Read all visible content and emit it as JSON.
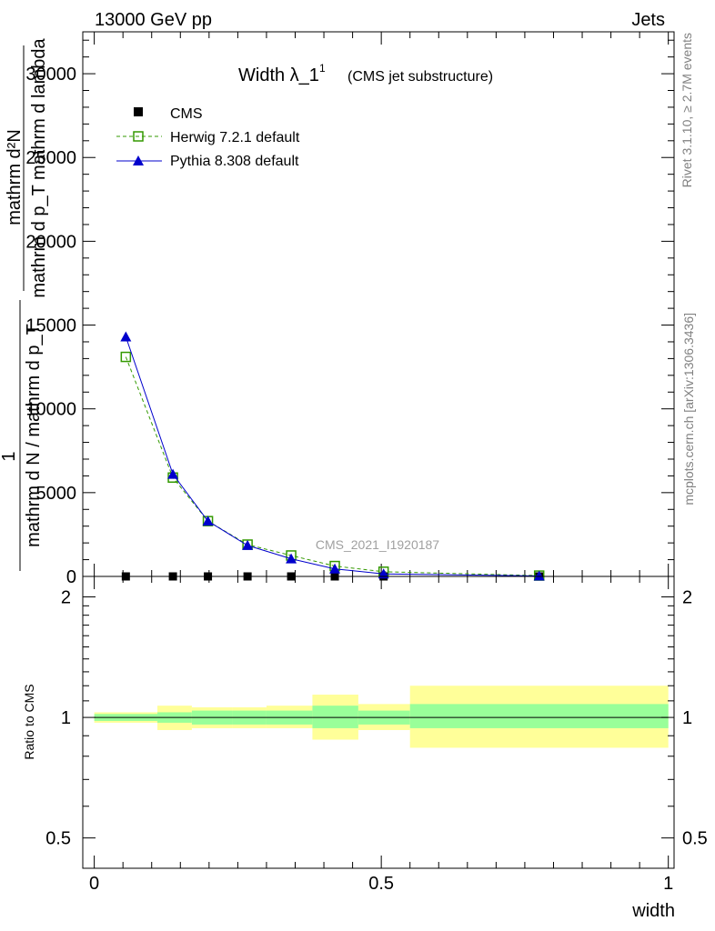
{
  "header": {
    "energy_label": "13000 GeV pp",
    "process_label": "Jets",
    "side_label_top": "Rivet 3.1.10, ≥ 2.7M events",
    "side_label_bottom": "mcplots.cern.ch [arXiv:1306.3436]"
  },
  "chart_data": [
    {
      "type": "line",
      "title": "Width λ_1",
      "title_superscript": "1",
      "subtitle": "(CMS jet substructure)",
      "watermark": "CMS_2021_I1920187",
      "ylabel_numerator": "mathrm d²N",
      "ylabel_denominator": "mathrm d p_T mathrm d lambda",
      "ylabel_prefix_numerator": "1",
      "ylabel_prefix_denominator": "mathrm d N / mathrm d p_T",
      "xlim": [
        -0.02,
        1.01
      ],
      "ylim": [
        0,
        32500
      ],
      "yticks": [
        0,
        5000,
        10000,
        15000,
        20000,
        25000,
        30000
      ],
      "ytick_labels": [
        "0",
        "5000",
        "10000",
        "15000",
        "20000",
        "25000",
        "30000"
      ],
      "legend_position": "top-left",
      "series": [
        {
          "name": "CMS",
          "marker": "square",
          "color": "#000000",
          "x": [
            0.055,
            0.137,
            0.198,
            0.267,
            0.343,
            0.419,
            0.504,
            0.775
          ],
          "y": [
            0,
            0,
            0,
            0,
            0,
            0,
            0,
            0
          ]
        },
        {
          "name": "Herwig 7.2.1 default",
          "marker": "open-square",
          "line": "dashed",
          "color": "#339900",
          "x": [
            0.055,
            0.137,
            0.198,
            0.267,
            0.343,
            0.419,
            0.504,
            0.775
          ],
          "y": [
            13100,
            5900,
            3300,
            1900,
            1250,
            620,
            280,
            50
          ]
        },
        {
          "name": "Pythia 8.308 default",
          "marker": "triangle",
          "line": "solid",
          "color": "#0000cc",
          "x": [
            0.055,
            0.137,
            0.198,
            0.267,
            0.343,
            0.419,
            0.504,
            0.775
          ],
          "y": [
            14300,
            6100,
            3300,
            1850,
            1050,
            450,
            150,
            30
          ]
        }
      ]
    },
    {
      "type": "area",
      "ylabel": "Ratio to CMS",
      "xlabel": "width",
      "xlim": [
        -0.02,
        1.01
      ],
      "ylim": [
        0.42,
        2.25
      ],
      "log_scale_y": true,
      "xticks": [
        0,
        0.5,
        1
      ],
      "xtick_labels": [
        "0",
        "0.5",
        "1"
      ],
      "yticks": [
        0.5,
        1,
        2
      ],
      "ytick_labels": [
        "0.5",
        "1",
        "2"
      ],
      "bins": [
        {
          "x0": 0.0,
          "x1": 0.11,
          "inner": [
            0.98,
            1.02
          ],
          "outer": [
            0.97,
            1.03
          ]
        },
        {
          "x0": 0.11,
          "x1": 0.17,
          "inner": [
            0.97,
            1.03
          ],
          "outer": [
            0.93,
            1.07
          ]
        },
        {
          "x0": 0.17,
          "x1": 0.24,
          "inner": [
            0.96,
            1.04
          ],
          "outer": [
            0.94,
            1.06
          ]
        },
        {
          "x0": 0.24,
          "x1": 0.3,
          "inner": [
            0.96,
            1.04
          ],
          "outer": [
            0.94,
            1.06
          ]
        },
        {
          "x0": 0.3,
          "x1": 0.38,
          "inner": [
            0.96,
            1.04
          ],
          "outer": [
            0.94,
            1.07
          ]
        },
        {
          "x0": 0.38,
          "x1": 0.46,
          "inner": [
            0.94,
            1.07
          ],
          "outer": [
            0.88,
            1.14
          ]
        },
        {
          "x0": 0.46,
          "x1": 0.55,
          "inner": [
            0.96,
            1.04
          ],
          "outer": [
            0.93,
            1.08
          ]
        },
        {
          "x0": 0.55,
          "x1": 1.0,
          "inner": [
            0.94,
            1.08
          ],
          "outer": [
            0.84,
            1.2
          ]
        }
      ],
      "band_colors": {
        "inner": "#99ff99",
        "outer": "#ffff99"
      },
      "reference_line": 1
    }
  ]
}
